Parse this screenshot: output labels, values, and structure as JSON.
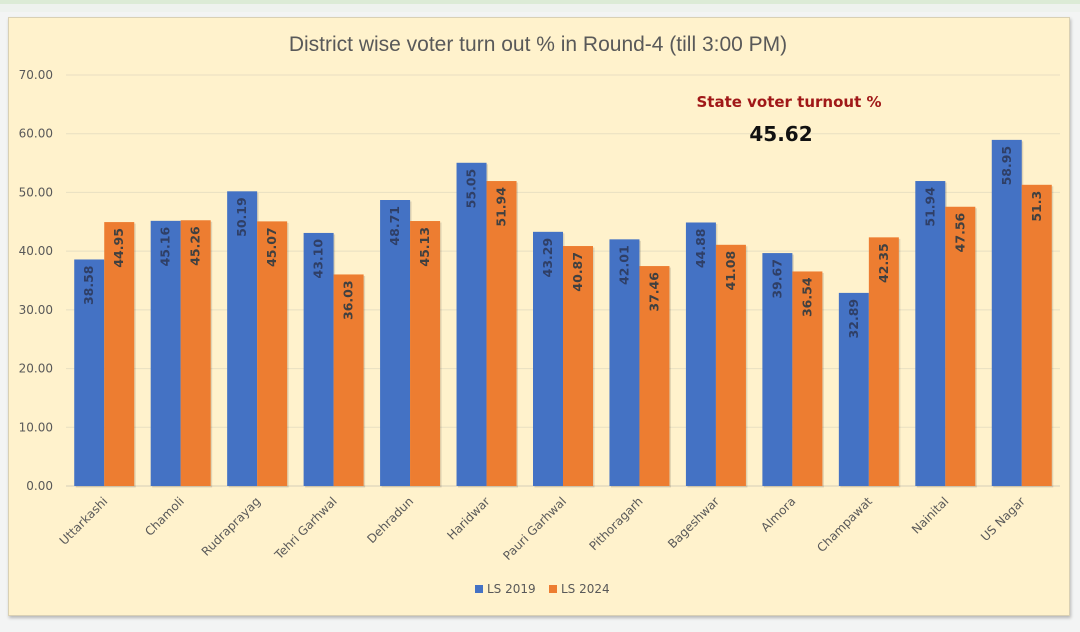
{
  "chart_data": {
    "type": "bar",
    "title": "District wise voter turn out % in Round-4 (till 3:00 PM)",
    "xlabel": "",
    "ylabel": "",
    "ylim": [
      0,
      70
    ],
    "yticks": [
      "0.00",
      "10.00",
      "20.00",
      "30.00",
      "40.00",
      "50.00",
      "60.00",
      "70.00"
    ],
    "ytick_values": [
      0,
      10,
      20,
      30,
      40,
      50,
      60,
      70
    ],
    "grid": true,
    "legend_position": "bottom",
    "categories": [
      "Uttarkashi",
      "Chamoli",
      "Rudraprayag",
      "Tehri Garhwal",
      "Dehradun",
      "Haridwar",
      "Pauri Garhwal",
      "Pithoragarh",
      "Bageshwar",
      "Almora",
      "Champawat",
      "Nainital",
      "US Nagar"
    ],
    "series": [
      {
        "name": "LS 2019",
        "color": "#4472C4",
        "values": [
          38.58,
          45.16,
          50.19,
          43.1,
          48.71,
          55.05,
          43.29,
          42.01,
          44.88,
          39.67,
          32.89,
          51.94,
          58.95
        ],
        "labels": [
          "38.58",
          "45.16",
          "50.19",
          "43.10",
          "48.71",
          "55.05",
          "43.29",
          "42.01",
          "44.88",
          "39.67",
          "32.89",
          "51.94",
          "58.95"
        ]
      },
      {
        "name": "LS 2024",
        "color": "#ED7D31",
        "values": [
          44.95,
          45.26,
          45.07,
          36.03,
          45.13,
          51.94,
          40.87,
          37.46,
          41.08,
          36.54,
          42.35,
          47.56,
          51.3
        ],
        "labels": [
          "44.95",
          "45.26",
          "45.07",
          "36.03",
          "45.13",
          "51.94",
          "40.87",
          "37.46",
          "41.08",
          "36.54",
          "42.35",
          "47.56",
          "51.3"
        ]
      }
    ],
    "annotations": [
      {
        "text": "State voter turnout %",
        "color": "#A01818"
      },
      {
        "text": "45.62",
        "color": "#111111"
      }
    ]
  },
  "state_turnout": {
    "label": "State voter turnout %",
    "value": "45.62"
  }
}
